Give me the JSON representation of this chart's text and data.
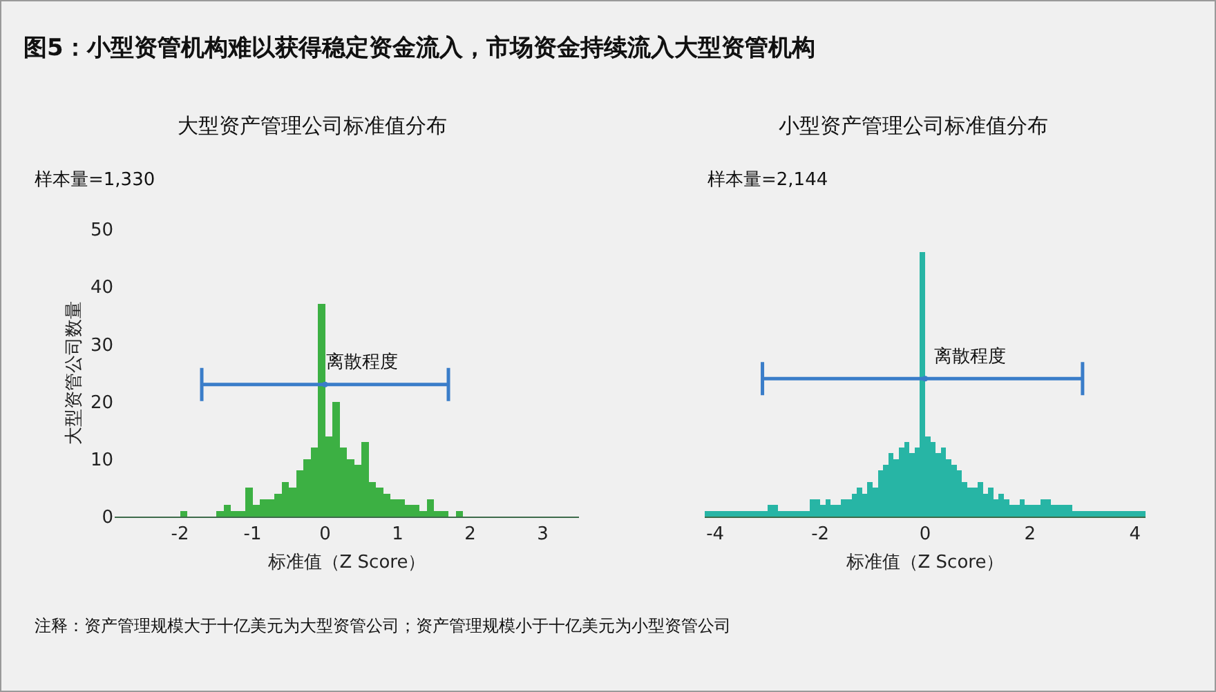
{
  "chart_data": [
    {
      "type": "histogram",
      "title": "大型资产管理公司标准值分布",
      "xlabel": "标准值（Z Score）",
      "ylabel": "大型资管公司数量",
      "annotations": [
        "图5：小型资管机构难以获得稳定资金流入，市场资金持续流入大型资管机构",
        "样本量=1,330",
        "离散程度",
        "注释：资产管理规模大于十亿美元为大型资管公司；资产管理规模小于十亿美元为小型资管公司"
      ],
      "bins": [
        -2.9,
        -2.8,
        -2.7,
        -2.6,
        -2.5,
        -2.4,
        -2.3,
        -2.2,
        -2.1,
        -2.0,
        -1.9,
        -1.8,
        -1.7,
        -1.6,
        -1.5,
        -1.4,
        -1.3,
        -1.2,
        -1.1,
        -1.0,
        -0.9,
        -0.8,
        -0.7,
        -0.6,
        -0.5,
        -0.4,
        -0.3,
        -0.2,
        -0.1,
        0.0,
        0.1,
        0.2,
        0.3,
        0.4,
        0.5,
        0.6,
        0.7,
        0.8,
        0.9,
        1.0,
        1.1,
        1.2,
        1.3,
        1.4,
        1.5,
        1.6,
        1.7,
        1.8,
        1.9,
        2.0,
        2.1,
        2.2,
        2.3,
        2.4,
        2.5,
        2.6,
        2.7,
        2.8,
        2.9,
        3.0,
        3.1,
        3.2,
        3.3,
        3.4,
        3.5
      ],
      "values": [
        0,
        0,
        0,
        0,
        0,
        0,
        0,
        0,
        0,
        1,
        0,
        0,
        0,
        0,
        1,
        2,
        1,
        1,
        5,
        2,
        3,
        3,
        4,
        6,
        5,
        8,
        10,
        12,
        37,
        14,
        20,
        12,
        10,
        9,
        13,
        6,
        5,
        4,
        3,
        3,
        2,
        2,
        1,
        3,
        1,
        1,
        0,
        1,
        0,
        0,
        0,
        0,
        0,
        0,
        0,
        0,
        0,
        0,
        0,
        0,
        0,
        0,
        0,
        0
      ],
      "color": "#3cb043",
      "xlim": [
        -2.9,
        3.5
      ],
      "xticks": [
        -2,
        -1,
        0,
        1,
        2,
        3
      ],
      "ylim": [
        0,
        50
      ],
      "yticks": [
        0,
        10,
        20,
        30,
        40,
        50
      ],
      "series": [
        {
          "type": "scatter",
          "x": [
            0
          ],
          "values": [
            23
          ],
          "xerrors": [
            [
              -1.7,
              1.7
            ]
          ],
          "color": "#3a7dc9",
          "marker": "circle"
        }
      ]
    },
    {
      "type": "histogram",
      "title": "小型资产管理公司标准值分布",
      "xlabel": "标准值（Z Score）",
      "annotations": [
        "样本量=2,144",
        "离散程度"
      ],
      "bins": [
        -4.2,
        -4.0,
        -3.8,
        -3.6,
        -3.4,
        -3.2,
        -3.0,
        -2.8,
        -2.6,
        -2.4,
        -2.2,
        -2.0,
        -1.9,
        -1.8,
        -1.7,
        -1.6,
        -1.5,
        -1.4,
        -1.3,
        -1.2,
        -1.1,
        -1.0,
        -0.9,
        -0.8,
        -0.7,
        -0.6,
        -0.5,
        -0.4,
        -0.3,
        -0.2,
        -0.1,
        0.0,
        0.1,
        0.2,
        0.3,
        0.4,
        0.5,
        0.6,
        0.7,
        0.8,
        0.9,
        1.0,
        1.1,
        1.2,
        1.3,
        1.4,
        1.5,
        1.6,
        1.7,
        1.8,
        1.9,
        2.0,
        2.2,
        2.4,
        2.6,
        2.8,
        3.0,
        3.2,
        3.4,
        3.6,
        3.8,
        4.0,
        4.2
      ],
      "values": [
        1,
        1,
        1,
        1,
        1,
        1,
        2,
        1,
        1,
        1,
        3,
        2,
        3,
        2,
        2,
        3,
        3,
        4,
        5,
        4,
        6,
        5,
        8,
        9,
        11,
        10,
        12,
        13,
        11,
        12,
        46,
        14,
        13,
        11,
        12,
        10,
        9,
        8,
        6,
        5,
        5,
        6,
        4,
        5,
        3,
        4,
        3,
        2,
        2,
        3,
        2,
        2,
        3,
        2,
        2,
        1,
        1,
        1,
        1,
        1,
        1,
        1
      ],
      "color": "#27b5a5",
      "xlim": [
        -4.2,
        4.2
      ],
      "xticks": [
        -4,
        -2,
        0,
        2,
        4
      ],
      "ylim": [
        0,
        50
      ],
      "yticks": [
        0,
        10,
        20,
        30,
        40,
        50
      ],
      "tick_labels": "x",
      "series": [
        {
          "type": "scatter",
          "x": [
            0
          ],
          "values": [
            24
          ],
          "xerrors": [
            [
              -3.1,
              3.0
            ]
          ],
          "color": "#3a7dc9",
          "marker": "circle"
        }
      ]
    }
  ]
}
